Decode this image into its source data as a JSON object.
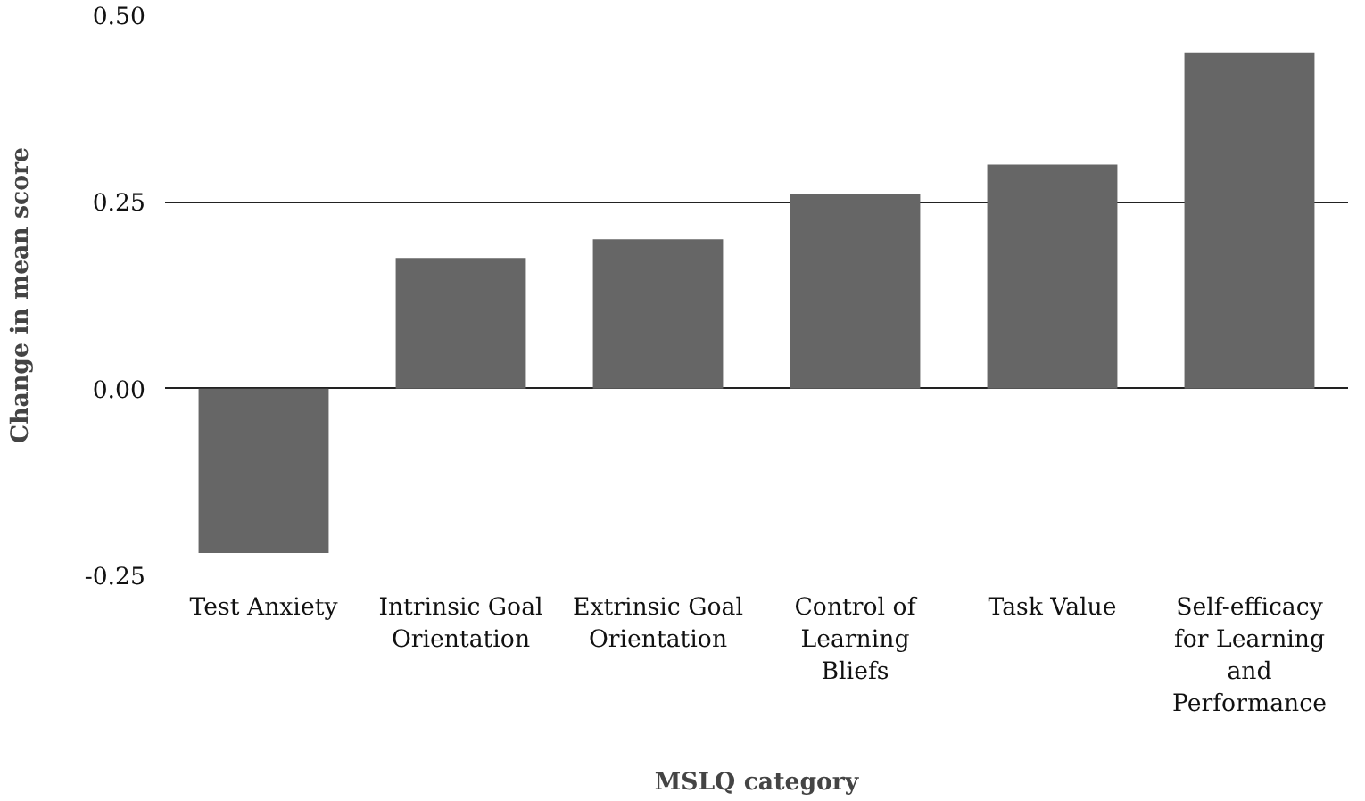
{
  "chart_data": {
    "type": "bar",
    "xlabel": "MSLQ category",
    "ylabel": "Change in mean score",
    "categories": [
      "Test Anxiety",
      "Intrinsic Goal Orientation",
      "Extrinsic Goal Orientation",
      "Control of Learning Bliefs",
      "Task Value",
      "Self-efficacy for Learning and Performance"
    ],
    "values": [
      -0.22,
      0.175,
      0.2,
      0.26,
      0.3,
      0.45
    ],
    "color": "#666666",
    "ylim": [
      -0.25,
      0.5
    ],
    "yticks": [
      {
        "value": -0.25,
        "label": "-0.25"
      },
      {
        "value": 0,
        "label": "0.00"
      },
      {
        "value": 0.25,
        "label": "0.25"
      },
      {
        "value": 0.5,
        "label": "0.50"
      }
    ],
    "grid": "y"
  }
}
